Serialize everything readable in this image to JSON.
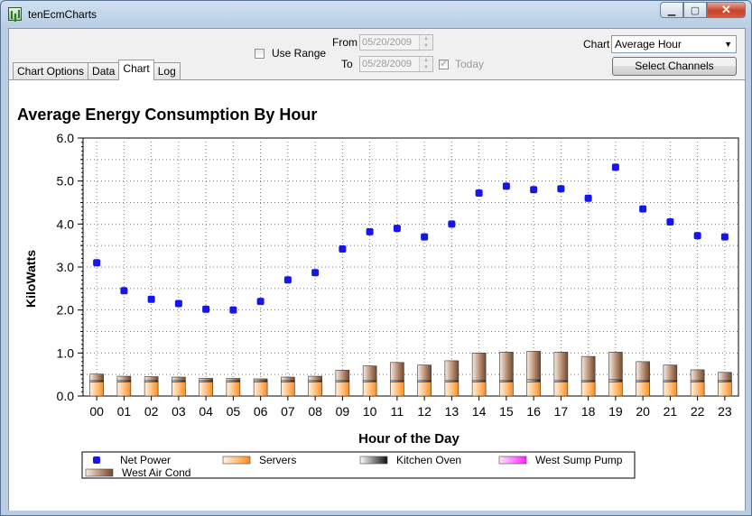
{
  "window": {
    "title": "tenEcmCharts",
    "minimize": "▁",
    "maximize": "▢",
    "close": "✕"
  },
  "tabs": [
    {
      "label": "Chart Options",
      "active": false
    },
    {
      "label": "Data",
      "active": false
    },
    {
      "label": "Chart",
      "active": true
    },
    {
      "label": "Log",
      "active": false
    }
  ],
  "range": {
    "use_range_label": "Use Range",
    "from_label": "From",
    "from_value": "05/20/2009",
    "to_label": "To",
    "to_value": "05/28/2009",
    "today_label": "Today"
  },
  "chart_selector": {
    "label": "Chart",
    "value": "Average Hour"
  },
  "select_channels_label": "Select Channels",
  "colors": {
    "net_power": "#1515ee",
    "servers": "#ff9a3c",
    "kitchen_oven": "#333333",
    "west_sump_pump": "#ff33ff",
    "west_air_cond": "#9a7256"
  },
  "chart_data": {
    "type": "bar",
    "title": "Average Energy Consumption By Hour",
    "xlabel": "Hour of the Day",
    "ylabel": "KiloWatts",
    "ylim": [
      0,
      6
    ],
    "yticks": [
      "0.0",
      "1.0",
      "2.0",
      "3.0",
      "4.0",
      "5.0",
      "6.0"
    ],
    "grid": true,
    "legend_position": "bottom",
    "categories": [
      "00",
      "01",
      "02",
      "03",
      "04",
      "05",
      "06",
      "07",
      "08",
      "09",
      "10",
      "11",
      "12",
      "13",
      "14",
      "15",
      "16",
      "17",
      "18",
      "19",
      "20",
      "21",
      "22",
      "23"
    ],
    "series": [
      {
        "name": "Net Power",
        "type": "scatter",
        "values": [
          3.1,
          2.45,
          2.25,
          2.15,
          2.02,
          2.0,
          2.2,
          2.7,
          2.87,
          3.42,
          3.82,
          3.9,
          3.7,
          4.0,
          4.72,
          4.88,
          4.8,
          4.82,
          4.6,
          5.32,
          4.35,
          4.05,
          3.73,
          3.7
        ]
      },
      {
        "name": "Servers",
        "type": "bar",
        "values": [
          0.33,
          0.33,
          0.33,
          0.33,
          0.33,
          0.33,
          0.33,
          0.33,
          0.33,
          0.33,
          0.33,
          0.33,
          0.33,
          0.33,
          0.33,
          0.33,
          0.33,
          0.33,
          0.33,
          0.33,
          0.33,
          0.33,
          0.33,
          0.33
        ]
      },
      {
        "name": "Kitchen Oven",
        "type": "bar",
        "values": [
          0.03,
          0.03,
          0.03,
          0.03,
          0.03,
          0.03,
          0.03,
          0.03,
          0.03,
          0.03,
          0.03,
          0.03,
          0.03,
          0.03,
          0.03,
          0.03,
          0.05,
          0.03,
          0.03,
          0.05,
          0.03,
          0.03,
          0.03,
          0.03
        ]
      },
      {
        "name": "West Sump Pump",
        "type": "bar",
        "values": [
          0,
          0,
          0,
          0,
          0,
          0,
          0,
          0,
          0,
          0,
          0,
          0,
          0,
          0,
          0,
          0,
          0,
          0,
          0,
          0,
          0,
          0,
          0,
          0
        ]
      },
      {
        "name": "West Air Cond",
        "type": "bar",
        "values": [
          0.15,
          0.1,
          0.09,
          0.08,
          0.05,
          0.05,
          0.04,
          0.08,
          0.1,
          0.24,
          0.34,
          0.42,
          0.36,
          0.46,
          0.64,
          0.66,
          0.66,
          0.66,
          0.56,
          0.64,
          0.44,
          0.36,
          0.25,
          0.19
        ]
      }
    ]
  }
}
